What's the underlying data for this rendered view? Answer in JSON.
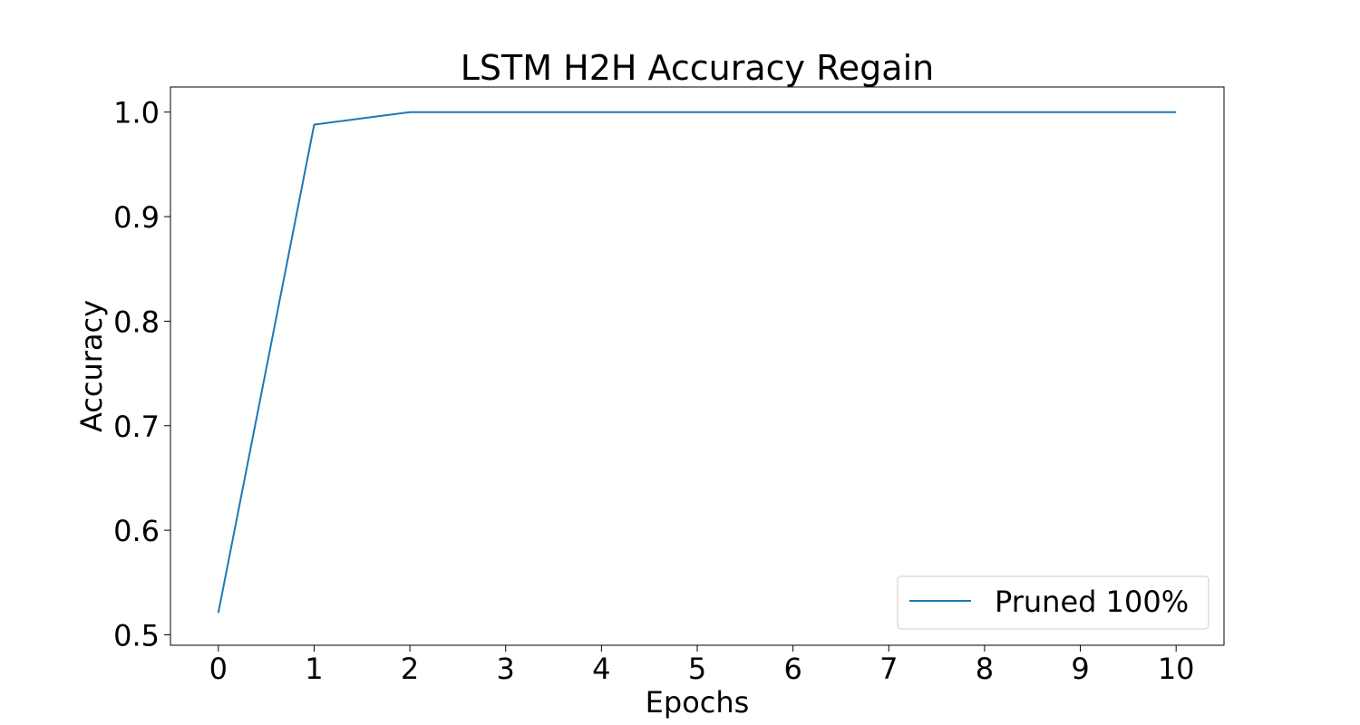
{
  "chart_data": {
    "type": "line",
    "title": "LSTM H2H Accuracy Regain",
    "xlabel": "Epochs",
    "ylabel": "Accuracy",
    "xlim": [
      -0.5,
      10.5
    ],
    "ylim": [
      0.49,
      1.024
    ],
    "x_ticks": [
      0,
      1,
      2,
      3,
      4,
      5,
      6,
      7,
      8,
      9,
      10
    ],
    "x_tick_labels": [
      "0",
      "1",
      "2",
      "3",
      "4",
      "5",
      "6",
      "7",
      "8",
      "9",
      "10"
    ],
    "y_ticks": [
      0.5,
      0.6,
      0.7,
      0.8,
      0.9,
      1.0
    ],
    "y_tick_labels": [
      "0.5",
      "0.6",
      "0.7",
      "0.8",
      "0.9",
      "1.0"
    ],
    "grid": false,
    "legend_position": "bottom-right",
    "series": [
      {
        "name": "Pruned 100%",
        "color": "#1f77b4",
        "x": [
          0,
          1,
          2,
          3,
          4,
          5,
          6,
          7,
          8,
          9,
          10
        ],
        "y": [
          0.521,
          0.988,
          1.0,
          1.0,
          1.0,
          1.0,
          1.0,
          1.0,
          1.0,
          1.0,
          1.0
        ]
      }
    ]
  }
}
